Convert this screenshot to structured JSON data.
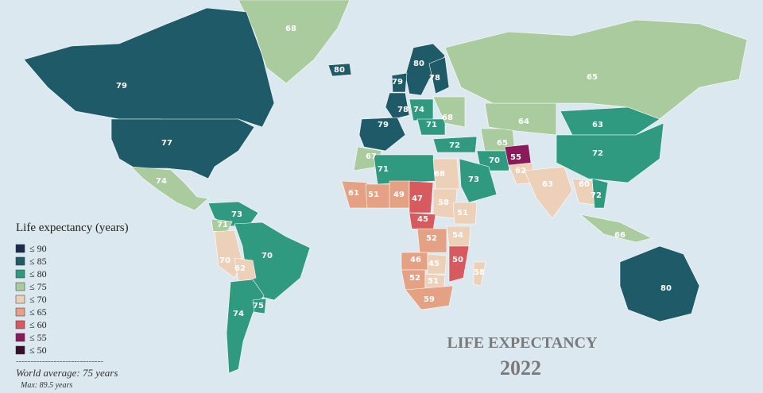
{
  "title": "LIFE EXPECTANCY",
  "year": "2022",
  "legend": {
    "title": "Life expectancy (years)",
    "items": [
      {
        "label": "≤ 90",
        "color": "#1b2b4c"
      },
      {
        "label": "≤ 85",
        "color": "#1e5a68"
      },
      {
        "label": "≤ 80",
        "color": "#2f9a7f"
      },
      {
        "label": "≤ 75",
        "color": "#a9cb9d"
      },
      {
        "label": "≤ 70",
        "color": "#ecd0b8"
      },
      {
        "label": "≤ 65",
        "color": "#e4a184"
      },
      {
        "label": "≤ 60",
        "color": "#d65a5e"
      },
      {
        "label": "≤ 55",
        "color": "#8b1a5a"
      },
      {
        "label": "≤ 50",
        "color": "#3a0d2e"
      }
    ],
    "separator": "------------------------------",
    "world_average": "World average: 75 years",
    "max": "Max: 89.5 years"
  },
  "regions": [
    {
      "value": 68,
      "color": "#a9cb9d"
    },
    {
      "value": 79,
      "color": "#1e5a68"
    },
    {
      "value": 77,
      "color": "#1e5a68"
    },
    {
      "value": 74,
      "color": "#a9cb9d"
    },
    {
      "value": 73,
      "color": "#2f9a7f"
    },
    {
      "value": 71,
      "color": "#a9cb9d"
    },
    {
      "value": 70,
      "color": "#ecd0b8"
    },
    {
      "value": 70,
      "color": "#2f9a7f"
    },
    {
      "value": 62,
      "color": "#ecd0b8"
    },
    {
      "value": 74,
      "color": "#2f9a7f"
    },
    {
      "value": 75,
      "color": "#2f9a7f"
    },
    {
      "value": 80,
      "color": "#1e5a68"
    },
    {
      "value": 80,
      "color": "#1e5a68"
    },
    {
      "value": 78,
      "color": "#1e5a68"
    },
    {
      "value": 79,
      "color": "#1e5a68"
    },
    {
      "value": 78,
      "color": "#1e5a68"
    },
    {
      "value": 79,
      "color": "#1e5a68"
    },
    {
      "value": 74,
      "color": "#2f9a7f"
    },
    {
      "value": 71,
      "color": "#2f9a7f"
    },
    {
      "value": 68,
      "color": "#a9cb9d"
    },
    {
      "value": 72,
      "color": "#2f9a7f"
    },
    {
      "value": 65,
      "color": "#a9cb9d"
    },
    {
      "value": 70,
      "color": "#2f9a7f"
    },
    {
      "value": 55,
      "color": "#8b1a5a"
    },
    {
      "value": 62,
      "color": "#ecd0b8"
    },
    {
      "value": 64,
      "color": "#a9cb9d"
    },
    {
      "value": 65,
      "color": "#a9cb9d"
    },
    {
      "value": 63,
      "color": "#2f9a7f"
    },
    {
      "value": 72,
      "color": "#2f9a7f"
    },
    {
      "value": 63,
      "color": "#ecd0b8"
    },
    {
      "value": 60,
      "color": "#ecd0b8"
    },
    {
      "value": 72,
      "color": "#2f9a7f"
    },
    {
      "value": 66,
      "color": "#a9cb9d"
    },
    {
      "value": 80,
      "color": "#1e5a68"
    },
    {
      "value": 67,
      "color": "#a9cb9d"
    },
    {
      "value": 71,
      "color": "#2f9a7f"
    },
    {
      "value": 68,
      "color": "#ecd0b8"
    },
    {
      "value": 73,
      "color": "#2f9a7f"
    },
    {
      "value": 61,
      "color": "#e4a184"
    },
    {
      "value": 51,
      "color": "#e4a184"
    },
    {
      "value": 49,
      "color": "#e4a184"
    },
    {
      "value": 47,
      "color": "#d65a5e"
    },
    {
      "value": 58,
      "color": "#ecd0b8"
    },
    {
      "value": 51,
      "color": "#ecd0b8"
    },
    {
      "value": 45,
      "color": "#d65a5e"
    },
    {
      "value": 52,
      "color": "#e4a184"
    },
    {
      "value": 54,
      "color": "#ecd0b8"
    },
    {
      "value": 46,
      "color": "#e4a184"
    },
    {
      "value": 45,
      "color": "#ecd0b8"
    },
    {
      "value": 50,
      "color": "#d65a5e"
    },
    {
      "value": 52,
      "color": "#e4a184"
    },
    {
      "value": 51,
      "color": "#ecd0b8"
    },
    {
      "value": 59,
      "color": "#e4a184"
    },
    {
      "value": 58,
      "color": "#ecd0b8"
    }
  ]
}
